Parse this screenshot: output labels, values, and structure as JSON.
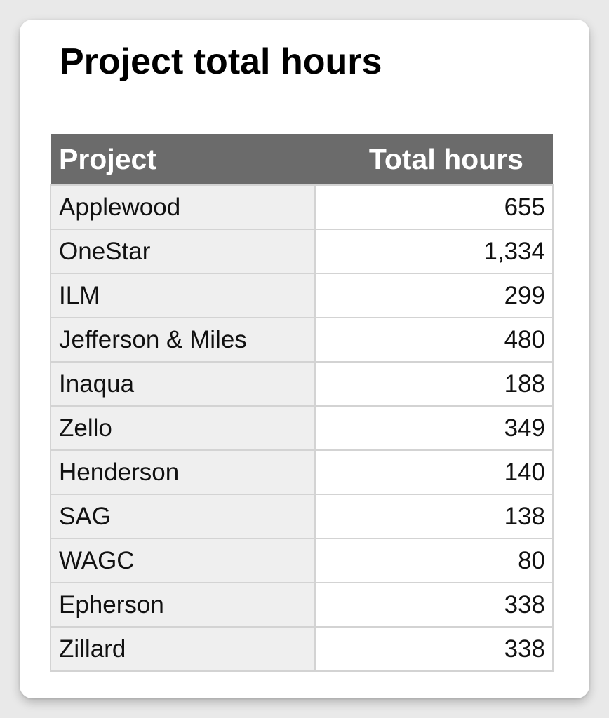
{
  "title": "Project total hours",
  "table": {
    "headers": {
      "project": "Project",
      "total_hours": "Total hours"
    },
    "rows": [
      {
        "project": "Applewood",
        "hours": "655"
      },
      {
        "project": "OneStar",
        "hours": "1,334"
      },
      {
        "project": "ILM",
        "hours": "299"
      },
      {
        "project": "Jefferson & Miles",
        "hours": "480"
      },
      {
        "project": "Inaqua",
        "hours": "188"
      },
      {
        "project": "Zello",
        "hours": "349"
      },
      {
        "project": "Henderson",
        "hours": "140"
      },
      {
        "project": "SAG",
        "hours": "138"
      },
      {
        "project": "WAGC",
        "hours": "80"
      },
      {
        "project": "Epherson",
        "hours": "338"
      },
      {
        "project": "Zillard",
        "hours": "338"
      }
    ]
  },
  "colors": {
    "header_background": "#6b6b6b",
    "header_text": "#ffffff",
    "project_cell_background": "#efefef",
    "hours_cell_background": "#ffffff",
    "grid_lines": "#d3d3d3",
    "page_background": "#e9e9e9"
  }
}
